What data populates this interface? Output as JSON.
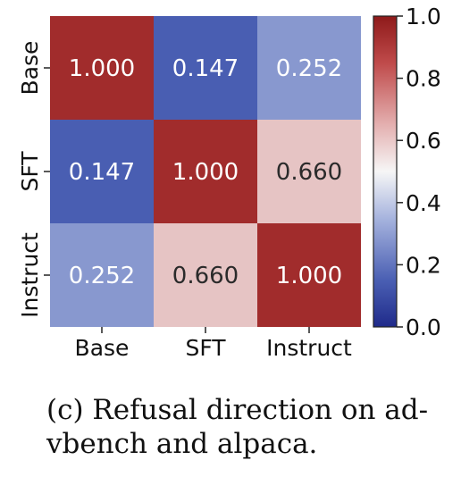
{
  "chart_data": {
    "type": "heatmap",
    "x_categories": [
      "Base",
      "SFT",
      "Instruct"
    ],
    "y_categories": [
      "Base",
      "SFT",
      "Instruct"
    ],
    "values": [
      [
        1.0,
        0.147,
        0.252
      ],
      [
        0.147,
        1.0,
        0.66
      ],
      [
        0.252,
        0.66,
        1.0
      ]
    ],
    "cell_labels": [
      [
        "1.000",
        "0.147",
        "0.252"
      ],
      [
        "0.147",
        "1.000",
        "0.660"
      ],
      [
        "0.252",
        "0.660",
        "1.000"
      ]
    ],
    "colormap": "coolwarm",
    "vmin": 0.0,
    "vmax": 1.0,
    "colorbar_ticks": [
      "0.0",
      "0.2",
      "0.4",
      "0.6",
      "0.8",
      "1.0"
    ],
    "colorbar_position": "right"
  },
  "caption": {
    "line1": "(c) Refusal direction on ad-",
    "line2": "vbench and alpaca."
  },
  "colors": {
    "low": "#3b4cc0",
    "mid": "#f7f7f7",
    "high": "#b40426",
    "text_dark": "#2b2b2b",
    "text_light": "#ffffff"
  }
}
